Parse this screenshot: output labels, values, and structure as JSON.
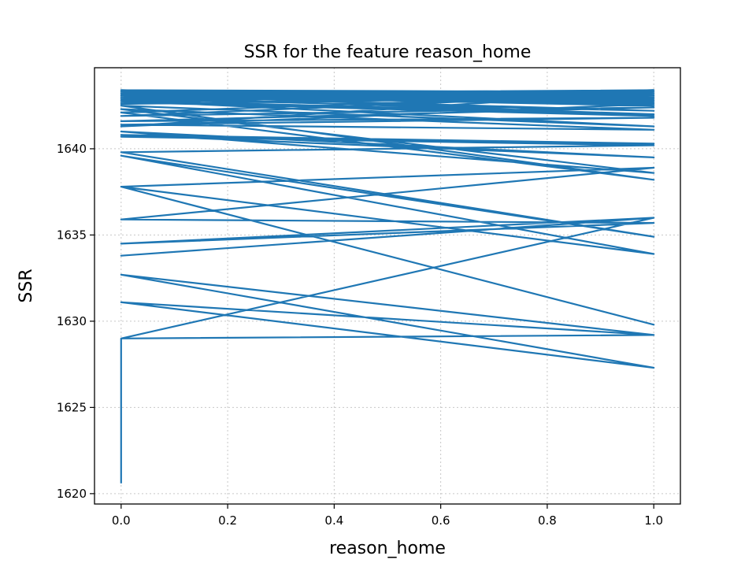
{
  "chart_data": {
    "type": "line",
    "title": "SSR for the feature reason_home",
    "xlabel": "reason_home",
    "ylabel": "SSR",
    "xlim": [
      -0.05,
      1.05
    ],
    "ylim": [
      1619.4,
      1644.7
    ],
    "xticks": [
      0.0,
      0.2,
      0.4,
      0.6,
      0.8,
      1.0
    ],
    "xtick_labels": [
      "0.0",
      "0.2",
      "0.4",
      "0.6",
      "0.8",
      "1.0"
    ],
    "yticks": [
      1620,
      1625,
      1630,
      1635,
      1640
    ],
    "ytick_labels": [
      "1620",
      "1625",
      "1630",
      "1635",
      "1640"
    ],
    "grid": true,
    "color": "#1f77b4",
    "series": [
      {
        "x": [
          0,
          0,
          0,
          0,
          1,
          0,
          1,
          0,
          1,
          0,
          1,
          0,
          1,
          0,
          1,
          0,
          1,
          0,
          1,
          0,
          1,
          0,
          1,
          0,
          1,
          0,
          1,
          0,
          1,
          0,
          1,
          0,
          1,
          0,
          1,
          0,
          1,
          0,
          1,
          0,
          1,
          0,
          1,
          0,
          1,
          0,
          1,
          0,
          1,
          0,
          1,
          0,
          1,
          0,
          1,
          0,
          1,
          0,
          1,
          0,
          1,
          0,
          1,
          0,
          1,
          0,
          1,
          0,
          1,
          0,
          1,
          0,
          1,
          0,
          1,
          0,
          1,
          0,
          1,
          0,
          1,
          0
        ],
        "y": [
          1620.6,
          1623.5,
          1629.0,
          1629.0,
          1629.2,
          1631.1,
          1627.3,
          1632.7,
          1629.2,
          1629.0,
          1636.0,
          1633.8,
          1636.0,
          1634.5,
          1635.7,
          1635.9,
          1638.9,
          1637.8,
          1629.8,
          1637.8,
          1633.9,
          1639.6,
          1634.9,
          1639.8,
          1640.2,
          1640.7,
          1640.3,
          1640.8,
          1639.5,
          1641.0,
          1638.6,
          1642.3,
          1641.1,
          1641.4,
          1641.8,
          1641.6,
          1642.4,
          1641.9,
          1643.2,
          1642.1,
          1638.2,
          1642.5,
          1641.3,
          1642.8,
          1642.0,
          1643.0,
          1642.6,
          1641.3,
          1643.3,
          1642.7,
          1641.9,
          1643.3,
          1642.5,
          1643.1,
          1642.2,
          1642.9,
          1643.3,
          1643.2,
          1642.8,
          1643.4,
          1643.0,
          1642.6,
          1643.1,
          1643.3,
          1642.7,
          1643.0,
          1643.4,
          1643.2,
          1642.9,
          1643.3,
          1643.1,
          1643.4,
          1643.0,
          1642.8,
          1643.3,
          1643.4,
          1643.2,
          1643.1,
          1643.4,
          1642.9,
          1643.3,
          1643.4
        ]
      }
    ]
  }
}
